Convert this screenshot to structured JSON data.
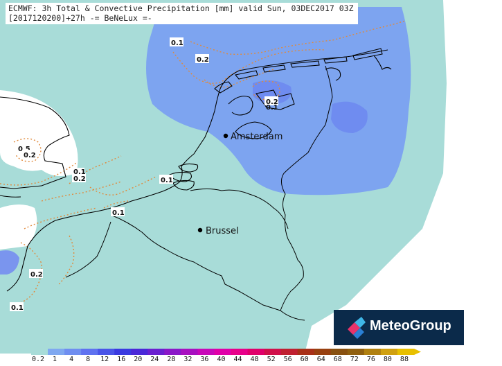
{
  "header": {
    "line1": "ECMWF: 3h Total & Convective Precipitation [mm] valid Sun, 03DEC2017 03Z",
    "line2": "[2017120200]+27h -= BeNeLux =-"
  },
  "cities": [
    {
      "name": "Amsterdam"
    },
    {
      "name": "Brussel"
    }
  ],
  "contour_labels": [
    "0.1",
    "0.2",
    "0.2",
    "0.1",
    "0.5",
    "0.2",
    "0.1",
    "0.2",
    "0.1",
    "0.1",
    "0.2",
    "0.1"
  ],
  "logo": {
    "text": "MeteoGroup"
  },
  "colorbar": {
    "ticks": [
      "0.2",
      "1",
      "4",
      "8",
      "12",
      "16",
      "20",
      "24",
      "28",
      "32",
      "36",
      "40",
      "44",
      "48",
      "52",
      "56",
      "60",
      "64",
      "68",
      "72",
      "76",
      "80",
      "88"
    ],
    "colors": [
      "#a8dcd8",
      "#7fa8f0",
      "#6f8ef0",
      "#5f72f0",
      "#4a55e8",
      "#3a3ae0",
      "#4a28d8",
      "#6a20d0",
      "#8a18c8",
      "#a810c0",
      "#c808b8",
      "#e000a8",
      "#e8008a",
      "#e0006a",
      "#d0104a",
      "#c02030",
      "#a83018",
      "#984010",
      "#885010",
      "#906010",
      "#b08010",
      "#d0a010",
      "#e8c000"
    ]
  },
  "colors": {
    "light_precip": "#a8dcd8",
    "medium_precip": "#7da4f0",
    "heavy_precip": "#6f8cf0",
    "contour": "#e08a3c",
    "border": "#000000"
  }
}
